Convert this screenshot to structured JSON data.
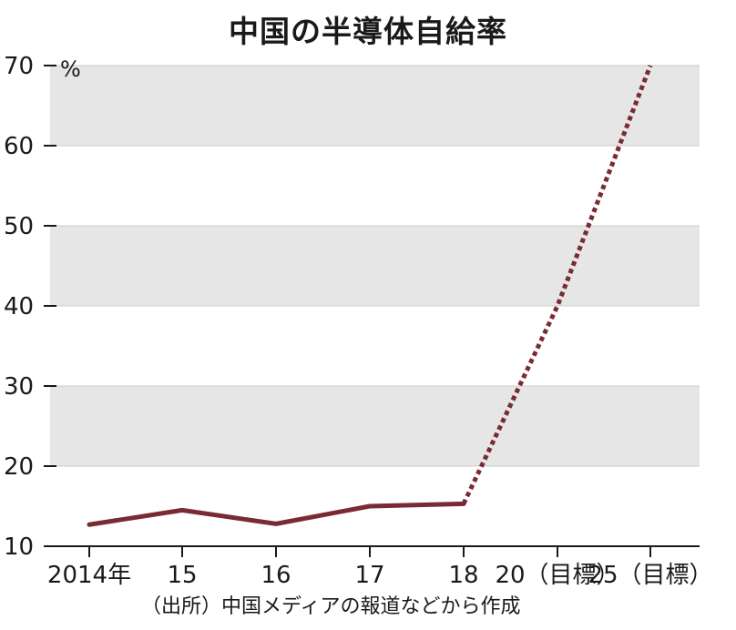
{
  "chart_data": {
    "type": "line",
    "title": "中国の半導体自給率",
    "source": "（出所）中国メディアの報道などから作成",
    "unit": "%",
    "categories": [
      "2014年",
      "15",
      "16",
      "17",
      "18",
      "20（目標）",
      "25（目標）"
    ],
    "ylim": [
      10,
      70
    ],
    "yticks": [
      10,
      20,
      30,
      40,
      50,
      60,
      70
    ],
    "grid": "alternating horizontal bands",
    "series": [
      {
        "style": "solid",
        "color": "#7a2a33",
        "points": [
          {
            "x": "2014年",
            "y": 12.7
          },
          {
            "x": "15",
            "y": 14.5
          },
          {
            "x": "16",
            "y": 12.8
          },
          {
            "x": "17",
            "y": 15.0
          },
          {
            "x": "18",
            "y": 15.3
          }
        ]
      },
      {
        "style": "dotted",
        "color": "#7a2a33",
        "points": [
          {
            "x": "18",
            "y": 15.3
          },
          {
            "x": "20（目標）",
            "y": 40
          },
          {
            "x": "25（目標）",
            "y": 70
          }
        ]
      }
    ]
  }
}
